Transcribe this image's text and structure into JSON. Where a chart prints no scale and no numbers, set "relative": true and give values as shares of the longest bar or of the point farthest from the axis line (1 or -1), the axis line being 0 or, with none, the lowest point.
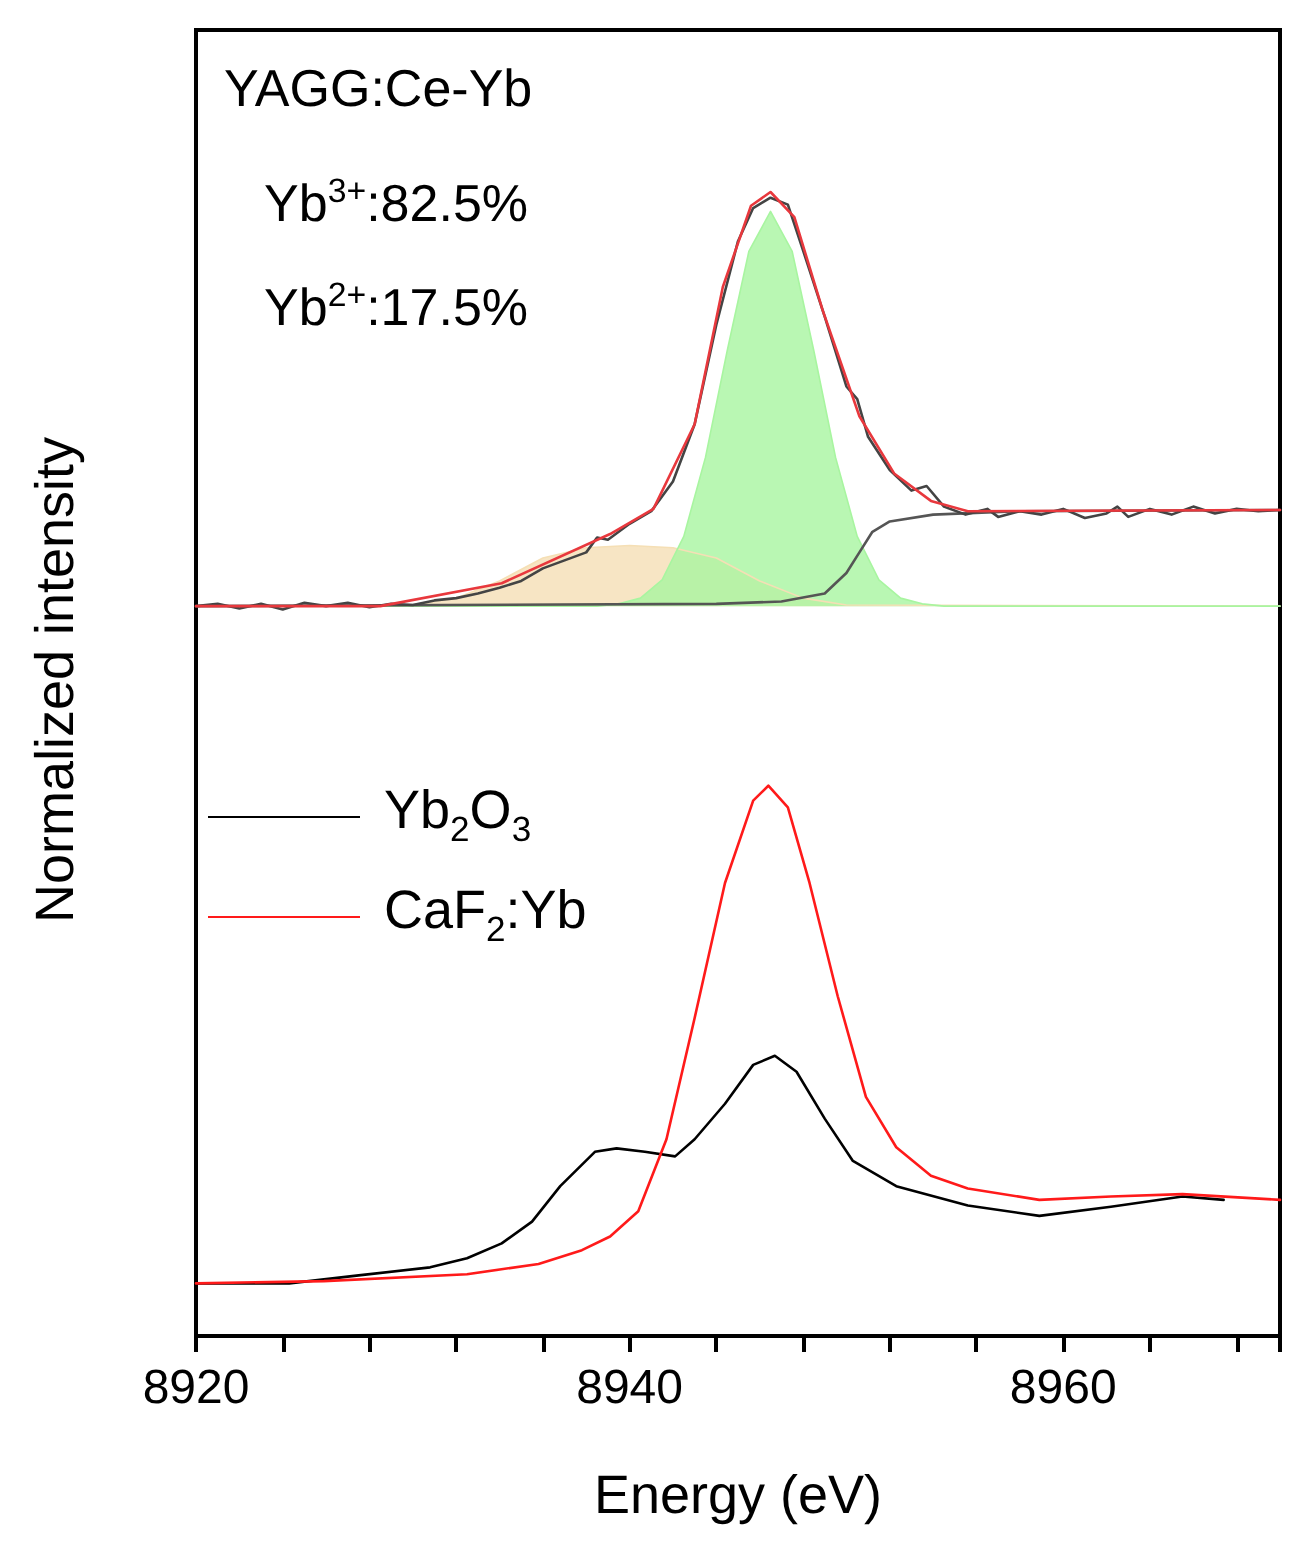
{
  "chart_data": {
    "type": "line",
    "relative": true,
    "xlim": [
      8920,
      8970
    ],
    "xticks": [
      8920,
      {
        "value": 8924,
        "label": null
      },
      {
        "value": 8928,
        "label": null
      },
      {
        "value": 8932,
        "label": null
      },
      {
        "value": 8936,
        "label": null
      },
      8940,
      {
        "value": 8944,
        "label": null
      },
      {
        "value": 8948,
        "label": null
      },
      {
        "value": 8952,
        "label": null
      },
      {
        "value": 8956,
        "label": null
      },
      8960,
      {
        "value": 8964,
        "label": null
      },
      {
        "value": 8968,
        "label": null
      }
    ],
    "tick_labels": "x",
    "xlabel": "Energy (eV)",
    "ylabel": "Normalized intensity",
    "legend": "left",
    "grid": false,
    "marker": "none",
    "annotations": [
      "YAGG:Ce-Yb",
      "Yb$^{3+}$:82.5%",
      "Yb$^{2+}$:17.5%"
    ],
    "series": [
      {
        "type": "area",
        "color": "#f5dfb5",
        "x": [
          8920,
          8928,
          8930,
          8932,
          8934,
          8936,
          8938,
          8940,
          8942,
          8944,
          8946,
          8948,
          8950,
          8970
        ],
        "values": [
          0.638,
          0.638,
          0.639,
          0.645,
          0.66,
          0.68,
          0.689,
          0.691,
          0.689,
          0.68,
          0.66,
          0.645,
          0.639,
          0.638
        ]
      },
      {
        "type": "area",
        "color": "#a8f5a0",
        "x": [
          8920,
          8938.5,
          8939.5,
          8940.5,
          8941.5,
          8942.5,
          8943.5,
          8944.5,
          8945.5,
          8946.5,
          8947.5,
          8948.5,
          8949.5,
          8950.5,
          8951.5,
          8952.5,
          8953.5,
          8954.5,
          8970
        ],
        "values": [
          0.638,
          0.638,
          0.64,
          0.645,
          0.661,
          0.699,
          0.768,
          0.861,
          0.948,
          0.983,
          0.948,
          0.861,
          0.768,
          0.699,
          0.661,
          0.645,
          0.64,
          0.638,
          0.638
        ]
      },
      {
        "color": "#555555",
        "x": [
          8920,
          8944,
          8947,
          8949,
          8950,
          8950.6,
          8951.2,
          8952,
          8954,
          8958,
          8970
        ],
        "values": [
          0.638,
          0.64,
          0.642,
          0.649,
          0.667,
          0.685,
          0.703,
          0.712,
          0.718,
          0.721,
          0.722
        ]
      },
      {
        "color": "#444444",
        "x": [
          8920,
          8921,
          8922,
          8923,
          8924,
          8925,
          8926,
          8927,
          8928,
          8929,
          8930,
          8931,
          8932,
          8933,
          8934,
          8935,
          8936,
          8937,
          8938,
          8938.5,
          8939,
          8940,
          8941,
          8942,
          8943,
          8944,
          8945,
          8945.7,
          8946.5,
          8947.3,
          8948,
          8949,
          8950,
          8950.5,
          8951,
          8952,
          8953,
          8953.7,
          8954.5,
          8955.5,
          8956.5,
          8957,
          8958,
          8959,
          8960,
          8961,
          8962,
          8962.5,
          8963,
          8964,
          8965,
          8966,
          8967,
          8968,
          8969,
          8970
        ],
        "values": [
          0.638,
          0.64,
          0.636,
          0.64,
          0.635,
          0.641,
          0.638,
          0.641,
          0.637,
          0.64,
          0.639,
          0.643,
          0.645,
          0.649,
          0.654,
          0.66,
          0.671,
          0.678,
          0.685,
          0.698,
          0.696,
          0.71,
          0.721,
          0.747,
          0.797,
          0.884,
          0.957,
          0.986,
          0.995,
          0.989,
          0.949,
          0.891,
          0.83,
          0.819,
          0.786,
          0.757,
          0.739,
          0.743,
          0.725,
          0.718,
          0.723,
          0.716,
          0.721,
          0.718,
          0.723,
          0.715,
          0.719,
          0.725,
          0.716,
          0.723,
          0.718,
          0.725,
          0.719,
          0.723,
          0.721,
          0.722
        ]
      },
      {
        "color": "#e8383d",
        "x": [
          8920,
          8928.5,
          8934.1,
          8939.1,
          8941.1,
          8943,
          8944.3,
          8945.6,
          8946.5,
          8947.6,
          8948.9,
          8950.6,
          8952.2,
          8953.9,
          8955.6,
          8970
        ],
        "values": [
          0.638,
          0.638,
          0.658,
          0.701,
          0.723,
          0.797,
          0.917,
          0.988,
          1,
          0.978,
          0.897,
          0.804,
          0.754,
          0.73,
          0.721,
          0.722
        ]
      },
      {
        "name": "Yb$_{2}$O$_{3}$",
        "color": "#000000",
        "x": [
          8920,
          8924.3,
          8927.5,
          8930.8,
          8932.5,
          8934.1,
          8935.5,
          8936.8,
          8938.4,
          8939.4,
          8940.7,
          8942.1,
          8943,
          8944.4,
          8945.7,
          8946.7,
          8947.7,
          8949,
          8950.3,
          8952.3,
          8955.6,
          8958.9,
          8962.2,
          8965.5,
          8967.4
        ],
        "values": [
          0.046,
          0.046,
          0.053,
          0.06,
          0.068,
          0.081,
          0.1,
          0.131,
          0.161,
          0.164,
          0.161,
          0.157,
          0.172,
          0.203,
          0.237,
          0.245,
          0.231,
          0.19,
          0.153,
          0.131,
          0.114,
          0.105,
          0.113,
          0.122,
          0.119
        ]
      },
      {
        "name": "CaF$_{2}$:Yb",
        "color": "#ff1a1a",
        "x": [
          8920,
          8925.9,
          8932.5,
          8935.8,
          8937.8,
          8939.1,
          8940.4,
          8941.7,
          8943,
          8944.4,
          8945.7,
          8946.4,
          8947.3,
          8948.3,
          8949.6,
          8950.9,
          8952.3,
          8953.9,
          8955.6,
          8958.9,
          8962.2,
          8965.5,
          8970
        ],
        "values": [
          0.046,
          0.048,
          0.054,
          0.063,
          0.075,
          0.087,
          0.109,
          0.172,
          0.278,
          0.396,
          0.468,
          0.481,
          0.462,
          0.396,
          0.297,
          0.209,
          0.165,
          0.14,
          0.129,
          0.119,
          0.122,
          0.124,
          0.119
        ]
      }
    ]
  }
}
